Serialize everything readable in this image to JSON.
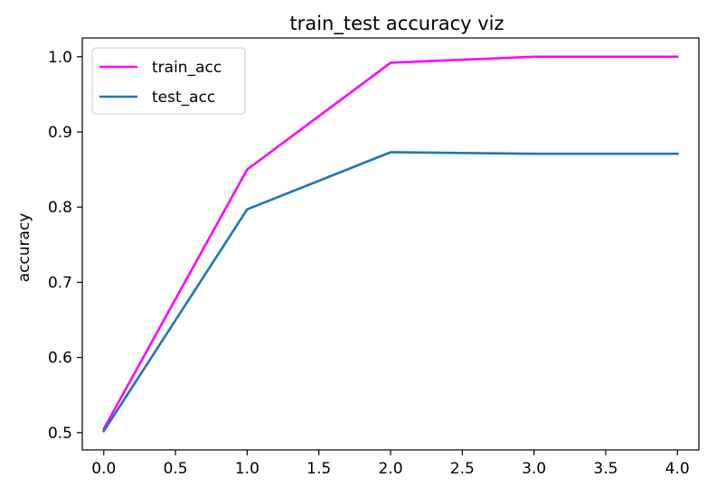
{
  "chart_data": {
    "type": "line",
    "title": "train_test accuracy viz",
    "xlabel": "",
    "ylabel": "accuracy",
    "xlim": [
      -0.15,
      4.15
    ],
    "ylim": [
      0.477,
      1.025
    ],
    "xticks": [
      0.0,
      0.5,
      1.0,
      1.5,
      2.0,
      2.5,
      3.0,
      3.5,
      4.0
    ],
    "xtick_labels": [
      "0.0",
      "0.5",
      "1.0",
      "1.5",
      "2.0",
      "2.5",
      "3.0",
      "3.5",
      "4.0"
    ],
    "yticks": [
      0.5,
      0.6,
      0.7,
      0.8,
      0.9,
      1.0
    ],
    "ytick_labels": [
      "0.5",
      "0.6",
      "0.7",
      "0.8",
      "0.9",
      "1.0"
    ],
    "grid": false,
    "legend_position": "upper-left",
    "x": [
      0,
      1,
      2,
      3,
      4
    ],
    "series": [
      {
        "name": "train_acc",
        "color": "#ff00ff",
        "values": [
          0.505,
          0.85,
          0.992,
          1.0,
          1.0
        ]
      },
      {
        "name": "test_acc",
        "color": "#1f77b4",
        "values": [
          0.502,
          0.797,
          0.873,
          0.871,
          0.871
        ]
      }
    ]
  }
}
